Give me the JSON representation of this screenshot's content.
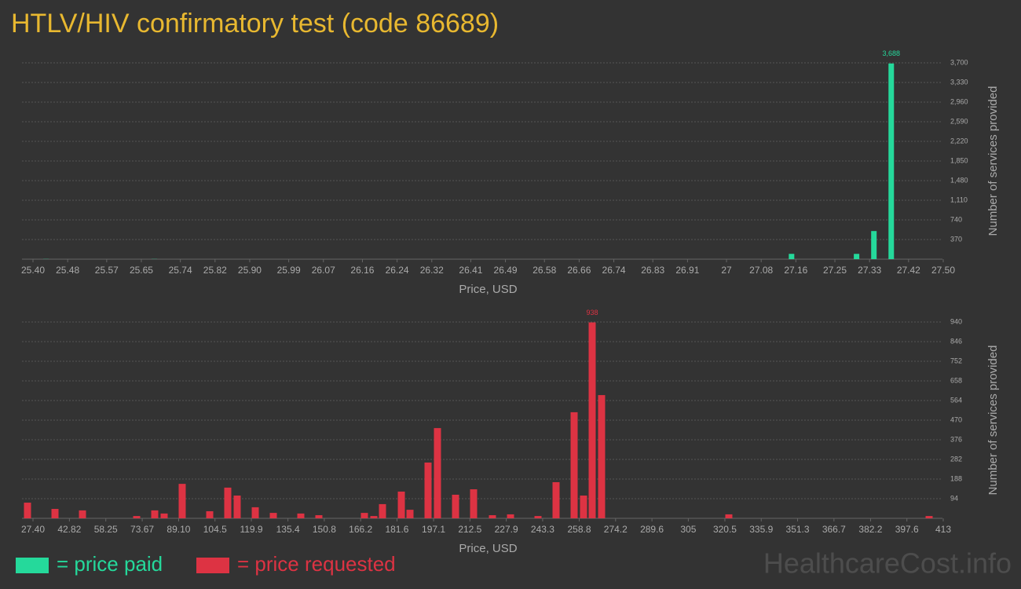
{
  "title": "HTLV/HIV confirmatory test (code 86689)",
  "watermark": "HealthcareCost.info",
  "chart_data": [
    {
      "type": "bar",
      "x_label": "Price, USD",
      "y_label": "Number of services provided",
      "xlim": [
        25.4,
        27.5
      ],
      "xticks": [
        {
          "value": 25.4,
          "label": "25.40"
        },
        25.48,
        25.57,
        25.65,
        25.74,
        25.82,
        {
          "value": 25.9,
          "label": "25.90"
        },
        25.99,
        26.07,
        26.16,
        26.24,
        26.32,
        26.41,
        26.49,
        26.58,
        26.66,
        26.74,
        26.83,
        26.91,
        27,
        27.08,
        27.16,
        27.25,
        27.33,
        27.42,
        {
          "value": 27.5,
          "label": "27.50"
        }
      ],
      "ylim": [
        0,
        3700
      ],
      "yticks": [
        370,
        740,
        {
          "value": 1110,
          "label": "1,110"
        },
        {
          "value": 1480,
          "label": "1,480"
        },
        {
          "value": 1850,
          "label": "1,850"
        },
        {
          "value": 2220,
          "label": "2,220"
        },
        {
          "value": 2590,
          "label": "2,590"
        },
        {
          "value": 2960,
          "label": "2,960"
        },
        {
          "value": 3330,
          "label": "3,330"
        },
        {
          "value": 3700,
          "label": "3,700"
        }
      ],
      "grid": true,
      "data_label": "max",
      "series": [
        {
          "name": "= price paid",
          "color": "#25d99b",
          "x": [
            25.43,
            25.68,
            27.15,
            27.3,
            27.34,
            27.38
          ],
          "values": [
            3,
            3,
            100,
            100,
            530,
            3688
          ],
          "value_labels": [
            null,
            null,
            null,
            null,
            null,
            "3,688"
          ]
        }
      ]
    },
    {
      "type": "bar",
      "x_label": "Price, USD",
      "y_label": "Number of services provided",
      "xlim": [
        27.4,
        413
      ],
      "xticks": [
        {
          "value": 27.4,
          "label": "27.40"
        },
        42.82,
        58.25,
        73.67,
        {
          "value": 89.1,
          "label": "89.10"
        },
        104.5,
        119.9,
        135.4,
        150.8,
        166.2,
        181.6,
        197.1,
        212.5,
        227.9,
        243.3,
        258.8,
        274.2,
        289.6,
        305,
        320.5,
        335.9,
        351.3,
        366.7,
        382.2,
        397.6,
        413
      ],
      "ylim": [
        0,
        940
      ],
      "yticks": [
        94,
        188,
        282,
        376,
        470,
        564,
        658,
        752,
        846,
        940
      ],
      "grid": true,
      "data_label": "max",
      "series": [
        {
          "name": "= price requested",
          "color": "#dd3343",
          "x": [
            25.07,
            36.72,
            48.36,
            71.32,
            78.97,
            82.96,
            90.61,
            102.26,
            109.91,
            113.9,
            121.56,
            129.21,
            140.85,
            148.5,
            167.8,
            171.79,
            175.45,
            183.44,
            187.1,
            194.75,
            198.74,
            206.4,
            214.05,
            222.03,
            229.69,
            241.33,
            248.98,
            256.63,
            260.62,
            264.28,
            268.27,
            322.17,
            407.01
          ],
          "values": [
            75,
            45,
            38,
            11,
            38,
            23,
            165,
            34,
            147,
            109,
            53,
            26,
            23,
            15,
            26,
            11,
            68,
            128,
            41,
            267,
            432,
            113,
            139,
            15,
            19,
            11,
            173,
            508,
            109,
            938,
            590,
            19,
            11
          ]
        }
      ]
    }
  ]
}
